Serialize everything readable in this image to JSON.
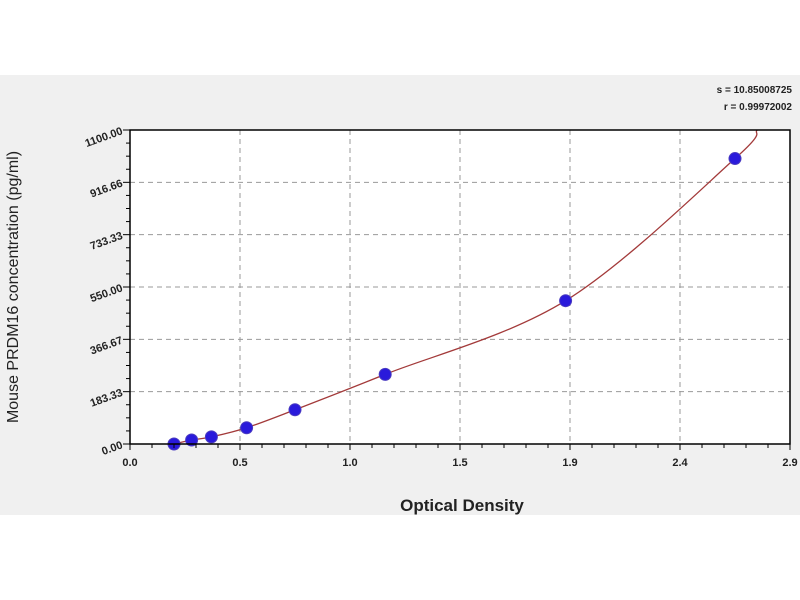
{
  "chart_data": {
    "type": "scatter",
    "title": "",
    "xlabel": "Optical Density",
    "ylabel": "Mouse PRDM16 concentration (pg/ml)",
    "xlim": [
      0,
      3.0
    ],
    "ylim": [
      0,
      1100
    ],
    "x_tick_labels": [
      "0.0",
      "0.5",
      "1.0",
      "1.5",
      "1.9",
      "2.4",
      "2.9"
    ],
    "y_tick_labels": [
      "0.00",
      "183.33",
      "366.67",
      "550.00",
      "733.33",
      "916.66",
      "1100.00"
    ],
    "grid": true,
    "annotations": [
      "s = 10.85008725",
      "r = 0.99972002"
    ],
    "series": [
      {
        "x": [
          0.2,
          0.28,
          0.37,
          0.53,
          0.75,
          1.16,
          1.98,
          2.75
        ],
        "y": [
          0,
          14,
          25,
          57,
          120,
          244,
          502,
          1000
        ],
        "marker_color": "#2a1adb",
        "curve_color": "#a33a3a"
      }
    ]
  }
}
